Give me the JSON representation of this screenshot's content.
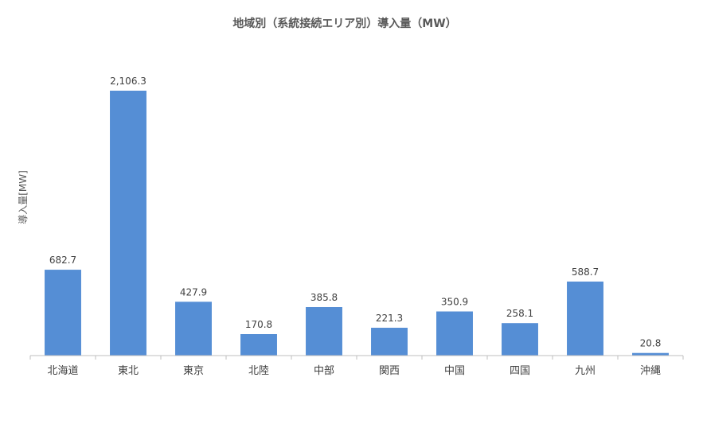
{
  "chart_data": {
    "type": "bar",
    "title": "地域別（系統接続エリア別）導入量（MW）",
    "xlabel": "",
    "ylabel": "導入量[MW]",
    "categories": [
      "北海道",
      "東北",
      "東京",
      "北陸",
      "中部",
      "関西",
      "中国",
      "四国",
      "九州",
      "沖縄"
    ],
    "values": [
      682.7,
      2106.3,
      427.9,
      170.8,
      385.8,
      221.3,
      350.9,
      258.1,
      588.7,
      20.8
    ],
    "value_labels": [
      "682.7",
      "2,106.3",
      "427.9",
      "170.8",
      "385.8",
      "221.3",
      "350.9",
      "258.1",
      "588.7",
      "20.8"
    ],
    "ylim": [
      0,
      2106.3
    ],
    "grid": false,
    "legend": "none",
    "bar_color": "#558ED5"
  }
}
